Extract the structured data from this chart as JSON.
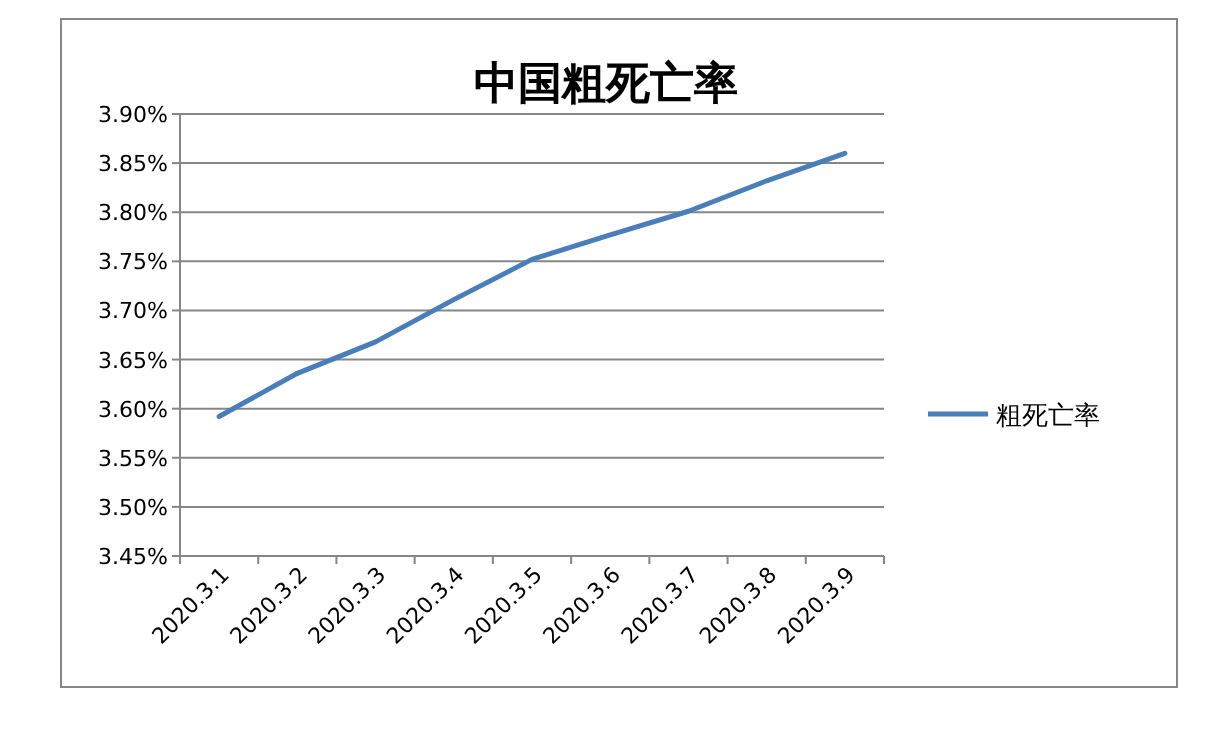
{
  "chart_data": {
    "type": "line",
    "title": "中国粗死亡率",
    "categories": [
      "2020.3.1",
      "2020.3.2",
      "2020.3.3",
      "2020.3.4",
      "2020.3.5",
      "2020.3.6",
      "2020.3.7",
      "2020.3.8",
      "2020.3.9"
    ],
    "series": [
      {
        "name": "粗死亡率",
        "color": "#4a7ebb",
        "values": [
          3.592,
          3.636,
          3.668,
          3.711,
          3.752,
          3.777,
          3.801,
          3.832,
          3.86
        ]
      }
    ],
    "ylim": [
      3.45,
      3.9
    ],
    "yticks": [
      {
        "value": 3.45,
        "label": "3.45%"
      },
      {
        "value": 3.5,
        "label": "3.50%"
      },
      {
        "value": 3.55,
        "label": "3.55%"
      },
      {
        "value": 3.6,
        "label": "3.60%"
      },
      {
        "value": 3.65,
        "label": "3.65%"
      },
      {
        "value": 3.7,
        "label": "3.70%"
      },
      {
        "value": 3.75,
        "label": "3.75%"
      },
      {
        "value": 3.8,
        "label": "3.80%"
      },
      {
        "value": 3.85,
        "label": "3.85%"
      },
      {
        "value": 3.9,
        "label": "3.90%"
      }
    ],
    "grid": "y",
    "legend": "right",
    "marker": "none",
    "line_style": "solid"
  }
}
